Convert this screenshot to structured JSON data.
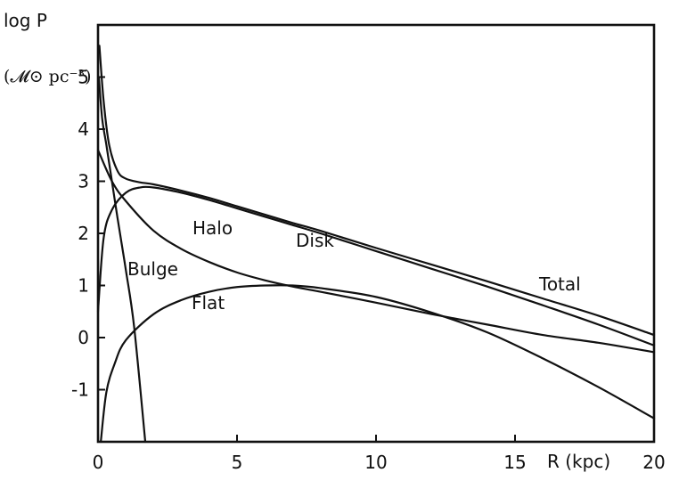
{
  "chart_data": {
    "type": "line",
    "title": "",
    "xlabel": "R (kpc)",
    "ylabel": "log P",
    "yunit": "(𝓜⊙ pc⁻³)",
    "xlim": [
      0,
      20
    ],
    "ylim": [
      -2,
      6
    ],
    "x_ticks": [
      0,
      5,
      10,
      15,
      20
    ],
    "y_ticks": [
      -1,
      0,
      1,
      2,
      3,
      4,
      5
    ],
    "grid": false,
    "series": [
      {
        "name": "Total",
        "x": [
          0.05,
          0.2,
          0.4,
          0.7,
          1.0,
          1.5,
          2,
          3,
          4,
          5,
          6,
          7,
          8,
          10,
          12,
          14,
          16,
          18,
          20
        ],
        "y": [
          5.6,
          4.55,
          3.7,
          3.2,
          3.05,
          2.98,
          2.94,
          2.82,
          2.68,
          2.52,
          2.36,
          2.2,
          2.05,
          1.72,
          1.4,
          1.08,
          0.75,
          0.42,
          0.05
        ]
      },
      {
        "name": "Disk",
        "x": [
          0.0,
          0.2,
          0.5,
          1.0,
          1.5,
          2,
          3,
          4,
          5,
          6,
          7,
          8,
          10,
          12,
          14,
          16,
          18,
          20
        ],
        "y": [
          0.5,
          1.9,
          2.45,
          2.78,
          2.88,
          2.88,
          2.78,
          2.64,
          2.48,
          2.32,
          2.16,
          2.0,
          1.66,
          1.32,
          0.98,
          0.62,
          0.25,
          -0.15
        ]
      },
      {
        "name": "Halo",
        "x": [
          0.0,
          0.5,
          1.0,
          2,
          3,
          4,
          5,
          6,
          7,
          8,
          10,
          12,
          14,
          16,
          18,
          20
        ],
        "y": [
          3.6,
          3.0,
          2.62,
          2.05,
          1.7,
          1.45,
          1.25,
          1.1,
          0.98,
          0.88,
          0.67,
          0.45,
          0.25,
          0.05,
          -0.1,
          -0.28
        ]
      },
      {
        "name": "Bulge",
        "x": [
          0.03,
          0.15,
          0.3,
          0.5,
          0.7,
          1.0,
          1.3,
          1.7
        ],
        "y": [
          5.0,
          4.2,
          3.7,
          3.0,
          2.3,
          1.3,
          0.2,
          -2.0
        ]
      },
      {
        "name": "Flat",
        "x": [
          0.1,
          0.3,
          0.6,
          1.0,
          2,
          3,
          4,
          5,
          6,
          7,
          8,
          10,
          12,
          14,
          16,
          18,
          20
        ],
        "y": [
          -2.0,
          -1.05,
          -0.5,
          -0.05,
          0.45,
          0.72,
          0.88,
          0.97,
          1.0,
          1.0,
          0.95,
          0.78,
          0.48,
          0.1,
          -0.4,
          -0.95,
          -1.55
        ]
      }
    ],
    "labels": {
      "total": "Total",
      "disk": "Disk",
      "halo": "Halo",
      "bulge": "Bulge",
      "flat": "Flat"
    }
  }
}
